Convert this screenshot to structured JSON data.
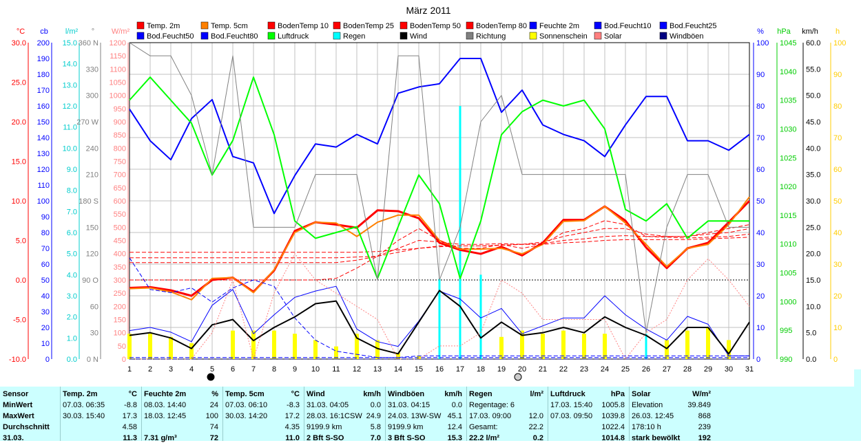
{
  "chart_data": {
    "type": "line",
    "title": "März 2011",
    "x": [
      1,
      2,
      3,
      4,
      5,
      6,
      7,
      8,
      9,
      10,
      11,
      12,
      13,
      14,
      15,
      16,
      17,
      18,
      19,
      20,
      21,
      22,
      23,
      24,
      25,
      26,
      27,
      28,
      29,
      30,
      31
    ],
    "axes_left": [
      {
        "label": "°C",
        "color": "#ff0000",
        "ticks": [
          "30.0",
          "25.0",
          "20.0",
          "15.0",
          "10.0",
          "5.0",
          "0.0",
          "-5.0",
          "-10.0"
        ]
      },
      {
        "label": "cb",
        "color": "#0000ff",
        "ticks": [
          "200",
          "190",
          "180",
          "170",
          "160",
          "150",
          "140",
          "130",
          "120",
          "110",
          "100",
          "90",
          "80",
          "70",
          "60",
          "50",
          "40",
          "30",
          "20",
          "10",
          "0"
        ]
      },
      {
        "label": "l/m²",
        "color": "#00cccc",
        "ticks": [
          "15.0",
          "14.0",
          "13.0",
          "12.0",
          "11.0",
          "10.0",
          "9.0",
          "8.0",
          "7.0",
          "6.0",
          "5.0",
          "4.0",
          "3.0",
          "2.0",
          "1.0",
          "0.0"
        ]
      },
      {
        "label": "°",
        "color": "#808080",
        "ticks": [
          "360 N",
          "330",
          "300",
          "270 W",
          "240",
          "210",
          "180 S",
          "150",
          "120",
          "90 O",
          "60",
          "30",
          "0 N"
        ]
      },
      {
        "label": "W/m²",
        "color": "#ff8080",
        "ticks": [
          "1200",
          "1150",
          "1100",
          "1050",
          "1000",
          "950",
          "900",
          "850",
          "800",
          "750",
          "700",
          "650",
          "600",
          "550",
          "500",
          "450",
          "400",
          "350",
          "300",
          "250",
          "200",
          "150",
          "100",
          "50",
          "0"
        ]
      }
    ],
    "axes_right": [
      {
        "label": "%",
        "color": "#0000ff",
        "ticks": [
          "100",
          "90",
          "80",
          "70",
          "60",
          "50",
          "40",
          "30",
          "20",
          "10",
          "0"
        ]
      },
      {
        "label": "hPa",
        "color": "#00cc00",
        "ticks": [
          "1045",
          "1040",
          "1035",
          "1030",
          "1025",
          "1020",
          "1015",
          "1010",
          "1005",
          "1000",
          "995",
          "990"
        ]
      },
      {
        "label": "km/h",
        "color": "#000000",
        "ticks": [
          "60.0",
          "55.0",
          "50.0",
          "45.0",
          "40.0",
          "35.0",
          "30.0",
          "25.0",
          "20.0",
          "15.0",
          "10.0",
          "5.0",
          "0.0"
        ]
      },
      {
        "label": "h",
        "color": "#ffcc00",
        "ticks": [
          "100",
          "90",
          "80",
          "70",
          "60",
          "50",
          "40",
          "30",
          "20",
          "10",
          "0"
        ]
      }
    ],
    "legend": [
      {
        "name": "Temp. 2m",
        "color": "#ff0000"
      },
      {
        "name": "Temp. 5cm",
        "color": "#ff8000"
      },
      {
        "name": "BodenTemp 10",
        "color": "#ff0000"
      },
      {
        "name": "BodenTemp 25",
        "color": "#ff0000"
      },
      {
        "name": "BodenTemp 50",
        "color": "#ff0000"
      },
      {
        "name": "BodenTemp 80",
        "color": "#ff0000"
      },
      {
        "name": "Feuchte 2m",
        "color": "#0000ff"
      },
      {
        "name": "Bod.Feucht10",
        "color": "#0000ff"
      },
      {
        "name": "Bod.Feucht25",
        "color": "#0000ff"
      },
      {
        "name": "Bod.Feucht50",
        "color": "#0000ff"
      },
      {
        "name": "Bod.Feucht80",
        "color": "#0000ff"
      },
      {
        "name": "Luftdruck",
        "color": "#00ff00"
      },
      {
        "name": "Regen",
        "color": "#00ffff"
      },
      {
        "name": "Wind",
        "color": "#000000"
      },
      {
        "name": "Richtung",
        "color": "#808080"
      },
      {
        "name": "Sonnenschein",
        "color": "#ffff00"
      },
      {
        "name": "Solar",
        "color": "#ff8080"
      },
      {
        "name": "Windböen",
        "color": "#000080"
      }
    ],
    "series": [
      {
        "name": "Temp. 2m",
        "unit": "°C",
        "color": "#ff0000",
        "values": [
          -1.0,
          -0.9,
          -1.3,
          -2.0,
          0.0,
          0.3,
          -1.5,
          1.2,
          6.2,
          7.3,
          7.0,
          6.6,
          8.8,
          8.7,
          7.8,
          4.7,
          3.8,
          3.3,
          4.2,
          3.1,
          4.7,
          7.6,
          7.6,
          9.3,
          7.5,
          4.1,
          1.5,
          4.0,
          4.7,
          7.3,
          10.0
        ]
      },
      {
        "name": "Temp. 5cm",
        "unit": "°C",
        "color": "#ff8000",
        "values": [
          -1.1,
          -1.0,
          -1.5,
          -2.5,
          0.2,
          0.3,
          -1.6,
          1.3,
          6.0,
          7.3,
          7.2,
          5.5,
          7.3,
          8.2,
          8.2,
          5.0,
          3.9,
          3.9,
          4.0,
          3.3,
          4.5,
          7.4,
          7.5,
          9.3,
          7.2,
          4.5,
          1.7,
          4.0,
          4.5,
          7.0,
          10.5
        ]
      },
      {
        "name": "BodenTemp 10",
        "unit": "°C",
        "color": "#ff0000",
        "values": [
          0.0,
          0.0,
          0.0,
          0.0,
          0.0,
          0.0,
          0.0,
          0.0,
          0.0,
          0.0,
          0.2,
          1.5,
          3.0,
          5.0,
          6.5,
          5.0,
          4.0,
          4.0,
          4.5,
          4.0,
          4.5,
          6.0,
          6.5,
          7.5,
          7.0,
          5.5,
          5.5,
          5.5,
          6.0,
          6.5,
          7.0
        ]
      },
      {
        "name": "BodenTemp 25",
        "unit": "°C",
        "color": "#ff0000",
        "values": [
          2.2,
          2.2,
          2.2,
          2.2,
          2.2,
          2.2,
          2.2,
          2.2,
          2.2,
          2.2,
          2.2,
          2.5,
          3.0,
          4.0,
          5.0,
          4.8,
          4.5,
          4.5,
          4.6,
          4.5,
          4.8,
          5.5,
          6.0,
          6.5,
          6.5,
          5.8,
          5.5,
          5.5,
          5.8,
          6.0,
          6.5
        ]
      },
      {
        "name": "BodenTemp 50",
        "unit": "°C",
        "color": "#ff0000",
        "values": [
          2.8,
          2.8,
          2.8,
          2.8,
          2.8,
          2.8,
          2.8,
          2.8,
          2.8,
          2.8,
          2.8,
          2.9,
          3.0,
          3.5,
          4.0,
          4.3,
          4.3,
          4.3,
          4.4,
          4.5,
          4.6,
          5.0,
          5.2,
          5.5,
          5.6,
          5.5,
          5.4,
          5.3,
          5.4,
          5.5,
          5.8
        ]
      },
      {
        "name": "BodenTemp 80",
        "unit": "°C",
        "color": "#ff0000",
        "values": [
          3.5,
          3.5,
          3.5,
          3.5,
          3.5,
          3.5,
          3.5,
          3.5,
          3.5,
          3.5,
          3.5,
          3.5,
          3.6,
          3.8,
          4.0,
          4.2,
          4.3,
          4.3,
          4.4,
          4.5,
          4.5,
          4.7,
          4.8,
          5.0,
          5.1,
          5.1,
          5.1,
          5.1,
          5.2,
          5.3,
          5.4
        ]
      },
      {
        "name": "Feuchte 2m",
        "unit": "%",
        "color": "#0000ff",
        "values": [
          79,
          69,
          63,
          76,
          82,
          64,
          62,
          46,
          58,
          68,
          67,
          71,
          68,
          84,
          86,
          87,
          95,
          95,
          78,
          85,
          74,
          71,
          69,
          64,
          74,
          83,
          83,
          69,
          69,
          66,
          71
        ]
      },
      {
        "name": "Bod.Feucht10",
        "unit": "cb",
        "color": "#0000ff",
        "values": [
          18,
          20,
          17,
          11,
          34,
          44,
          16,
          28,
          39,
          43,
          46,
          19,
          11,
          8,
          24,
          43,
          38,
          26,
          32,
          16,
          21,
          26,
          26,
          40,
          28,
          19,
          12,
          27,
          22,
          2,
          2
        ]
      },
      {
        "name": "Bod.Feucht25",
        "unit": "cb",
        "color": "#0000ff",
        "values": [
          64,
          44,
          42,
          45,
          36,
          45,
          50,
          46,
          26,
          12,
          5,
          3,
          1,
          1,
          2,
          2,
          2,
          2,
          2,
          2,
          2,
          2,
          2,
          2,
          2,
          2,
          2,
          2,
          2,
          2,
          2
        ]
      },
      {
        "name": "Bod.Feucht50",
        "unit": "cb",
        "color": "#0000ff",
        "values": [
          1,
          1,
          1,
          1,
          1,
          1,
          1,
          1,
          1,
          1,
          1,
          1,
          1,
          1,
          1,
          1,
          1,
          1,
          1,
          1,
          1,
          1,
          1,
          1,
          1,
          1,
          1,
          1,
          1,
          1,
          1
        ]
      },
      {
        "name": "Bod.Feucht80",
        "unit": "cb",
        "color": "#0000ff",
        "values": [
          0,
          0,
          0,
          0,
          0,
          0,
          0,
          0,
          0,
          0,
          0,
          0,
          0,
          0,
          0,
          0,
          0,
          0,
          0,
          0,
          0,
          0,
          0,
          0,
          0,
          0,
          0,
          0,
          0,
          0,
          0
        ]
      },
      {
        "name": "Luftdruck",
        "unit": "hPa",
        "color": "#00ff00",
        "values": [
          1035,
          1039,
          1035,
          1031,
          1022,
          1028,
          1039,
          1029,
          1014,
          1011,
          1012,
          1013,
          1004,
          1013,
          1022,
          1017,
          1004,
          1014,
          1029,
          1033,
          1035,
          1034,
          1035,
          1030,
          1016,
          1014,
          1017,
          1011,
          1014,
          1014,
          1014
        ]
      },
      {
        "name": "Regen",
        "unit": "l/m²",
        "color": "#00ffff",
        "values": [
          0,
          0,
          0,
          0,
          0,
          0,
          0,
          0,
          0,
          0,
          0,
          0,
          0,
          0,
          0,
          3.8,
          12.0,
          4.0,
          0,
          0,
          0,
          0,
          0,
          0,
          0,
          1.2,
          0,
          0,
          0,
          0,
          0
        ]
      },
      {
        "name": "Wind",
        "unit": "km/h",
        "color": "#000000",
        "values": [
          4.5,
          5.0,
          4.0,
          2.0,
          6.5,
          7.5,
          3.5,
          6.0,
          8.0,
          10.5,
          11.0,
          4.0,
          2.0,
          1.0,
          7.0,
          13.0,
          10.0,
          4.0,
          7.0,
          4.5,
          5.0,
          6.0,
          5.0,
          8.0,
          6.0,
          4.5,
          2.0,
          6.0,
          6.0,
          1.0,
          7.0
        ]
      },
      {
        "name": "Richtung",
        "unit": "°",
        "color": "#808080",
        "values": [
          360,
          345,
          345,
          300,
          210,
          345,
          150,
          150,
          150,
          210,
          210,
          210,
          90,
          345,
          345,
          90,
          150,
          270,
          300,
          210,
          210,
          210,
          210,
          210,
          210,
          30,
          150,
          210,
          210,
          150,
          150
        ]
      },
      {
        "name": "Sonnenschein",
        "unit": "h",
        "color": "#ffff00",
        "values": [
          8,
          8,
          7,
          5,
          0,
          9,
          9,
          9,
          8,
          6,
          4,
          8,
          6,
          2,
          1,
          0,
          0,
          0,
          7,
          9,
          8,
          9,
          8,
          8,
          0,
          0,
          6,
          9,
          10,
          6,
          0
        ]
      },
      {
        "name": "Solar",
        "unit": "W/m²",
        "color": "#ff8080",
        "values": [
          0,
          0,
          0,
          0,
          100,
          300,
          0,
          250,
          400,
          300,
          250,
          200,
          150,
          0,
          0,
          50,
          50,
          100,
          300,
          250,
          150,
          150,
          150,
          150,
          0,
          100,
          150,
          300,
          380,
          300,
          200
        ]
      },
      {
        "name": "Windböen",
        "unit": "km/h",
        "color": "#000080",
        "values": [
          0,
          0,
          0,
          0,
          0,
          0,
          0,
          0,
          0,
          0,
          0,
          0,
          0,
          0,
          0,
          0,
          0,
          0,
          0,
          0,
          0,
          0,
          0,
          0,
          0,
          0,
          0,
          0,
          0,
          0,
          0
        ]
      }
    ],
    "xlabel": "",
    "grid": true,
    "legend_position": "top"
  },
  "stats": [
    {
      "header": [
        "Sensor",
        ""
      ],
      "rows": [
        [
          "MinWert",
          ""
        ],
        [
          "MaxWert",
          ""
        ],
        [
          "Durchschnitt",
          ""
        ],
        [
          "31.03.",
          ""
        ]
      ]
    },
    {
      "header": [
        "Temp. 2m",
        "°C"
      ],
      "rows": [
        [
          "07.03.  06:35",
          "-8.8"
        ],
        [
          "30.03.  15:40",
          "17.3"
        ],
        [
          "",
          "4.58"
        ],
        [
          "",
          "11.3"
        ]
      ]
    },
    {
      "header": [
        "Feuchte 2m",
        "%"
      ],
      "rows": [
        [
          "08.03.  14:40",
          "24"
        ],
        [
          "18.03.  12:45",
          "100"
        ],
        [
          "",
          "74"
        ],
        [
          "7.31 g/m³",
          "72"
        ]
      ]
    },
    {
      "header": [
        "Temp. 5cm",
        "°C"
      ],
      "rows": [
        [
          "07.03.  06:10",
          "-8.3"
        ],
        [
          "30.03.  14:20",
          "17.2"
        ],
        [
          "",
          "4.35"
        ],
        [
          "",
          "11.0"
        ]
      ]
    },
    {
      "header": [
        "Wind",
        "km/h"
      ],
      "rows": [
        [
          "31.03.  04:05",
          "0.0"
        ],
        [
          "28.03.  16:1CSW",
          "24.9"
        ],
        [
          "9199.9 km",
          "5.8"
        ],
        [
          "2 Bft S-SO",
          "7.0"
        ]
      ]
    },
    {
      "header": [
        "Windböen",
        "km/h"
      ],
      "rows": [
        [
          "31.03.  04:15",
          "0.0"
        ],
        [
          "24.03.  13W-SW",
          "45.1"
        ],
        [
          "9199.9 km",
          "12.4"
        ],
        [
          "3 Bft S-SO",
          "15.3"
        ]
      ]
    },
    {
      "header": [
        "Regen",
        "l/m²"
      ],
      "rows": [
        [
          "Regentage: 6",
          ""
        ],
        [
          "17.03.  09:00",
          "12.0"
        ],
        [
          "Gesamt:",
          "22.2"
        ],
        [
          "22.2 l/m²",
          "0.2"
        ]
      ]
    },
    {
      "header": [
        "Luftdruck",
        "hPa"
      ],
      "rows": [
        [
          "17.03.  15:40",
          "1005.8"
        ],
        [
          "07.03.  09:50",
          "1039.8"
        ],
        [
          "",
          "1022.4"
        ],
        [
          "",
          "1014.8"
        ]
      ]
    },
    {
      "header": [
        "Solar",
        "W/m²"
      ],
      "rows": [
        [
          "Elevation",
          "39.849"
        ],
        [
          "26.03.  12:45",
          "868"
        ],
        [
          "178:10 h",
          "239"
        ],
        [
          "stark bewölkt",
          "192"
        ]
      ]
    }
  ]
}
